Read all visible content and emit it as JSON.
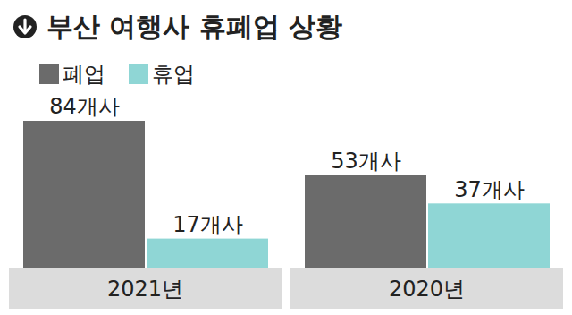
{
  "chart_data": {
    "type": "bar",
    "title": "부산 여행사 휴폐업 상황",
    "categories": [
      "2021년",
      "2020년"
    ],
    "series": [
      {
        "name": "폐업",
        "color": "#6b6b6b",
        "values": [
          84,
          53
        ],
        "value_labels": [
          "84개사",
          "53개사"
        ]
      },
      {
        "name": "휴업",
        "color": "#8fd6d5",
        "values": [
          17,
          37
        ],
        "value_labels": [
          "17개사",
          "37개사"
        ]
      }
    ],
    "data_labels": true,
    "tick_labels": "x",
    "legend": "top-left"
  }
}
